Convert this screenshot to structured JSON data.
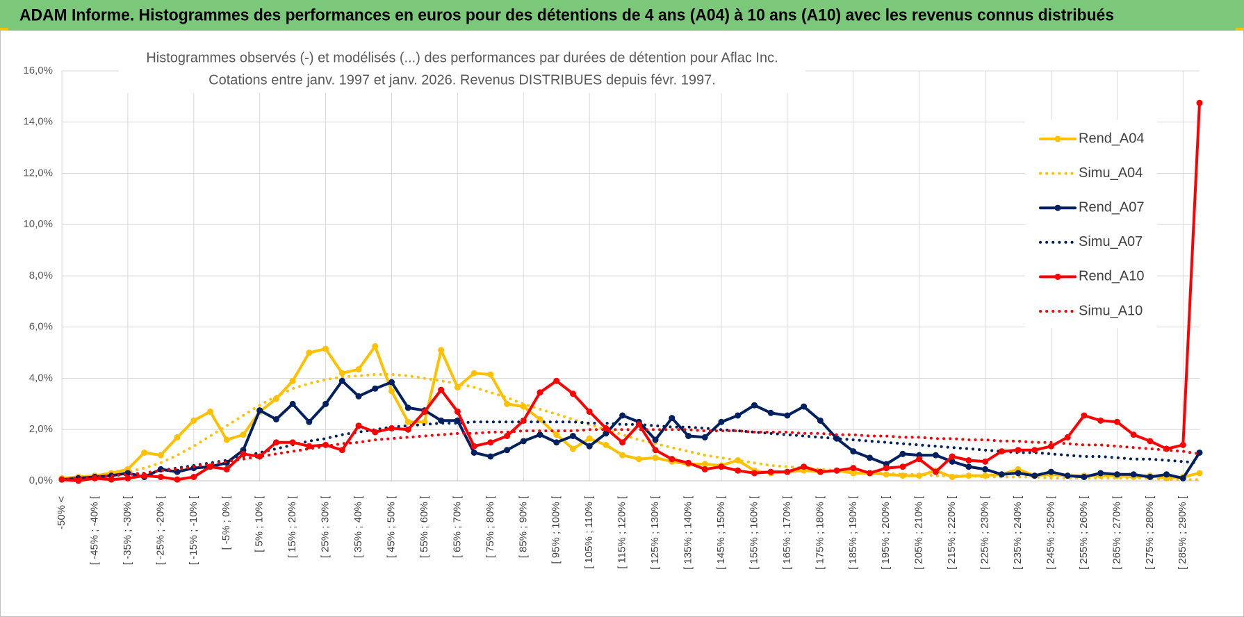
{
  "header": {
    "title": "ADAM Informe. Histogrammes des performances en euros pour des détentions de 4 ans (A04) à 10 ans (A10) avec les revenus connus distribués"
  },
  "chart_data": {
    "type": "line",
    "title": "Histogrammes observés (-) et modélisés (...) des performances par durées de détention pour Aflac Inc.",
    "subtitle": "Cotations entre janv. 1997 et janv. 2026. Revenus DISTRIBUES depuis févr. 1997.",
    "categories": [
      "-50% <",
      null,
      "[ -45% ; -40% [",
      null,
      "[ -35% ; -30% [",
      null,
      "[ -25% ; -20% [",
      null,
      "[ -15% ; -10% [",
      null,
      "[ -5% ; 0% [",
      null,
      "[ 5% ; 10% [",
      null,
      "[ 15% ; 20% [",
      null,
      "[ 25% ; 30% [",
      null,
      "[ 35% ; 40% [",
      null,
      "[ 45% ; 50% [",
      null,
      "[ 55% ; 60% [",
      null,
      "[ 65% ; 70% [",
      null,
      "[ 75% ; 80% [",
      null,
      "[ 85% ; 90% [",
      null,
      "[ 95% ; 100% [",
      null,
      "[ 105% ; 110% [",
      null,
      "[ 115% ; 120% [",
      null,
      "[ 125% ; 130% [",
      null,
      "[ 135% ; 140% [",
      null,
      "[ 145% ; 150% [",
      null,
      "[ 155% ; 160% [",
      null,
      "[ 165% ; 170% [",
      null,
      "[ 175% ; 180% [",
      null,
      "[ 185% ; 190% [",
      null,
      "[ 195% ; 200% [",
      null,
      "[ 205% ; 210% [",
      null,
      "[ 215% ; 220% [",
      null,
      "[ 225% ; 230% [",
      null,
      "[ 235% ; 240% [",
      null,
      "[ 245% ; 250% [",
      null,
      "[ 255% ; 260% [",
      null,
      "[ 265% ; 270% [",
      null,
      "[ 275% ; 280% [",
      null,
      "[ 285% ; 290% [",
      null
    ],
    "series": [
      {
        "name": "Rend_A04",
        "color": "#FFC000",
        "line_style": "solid",
        "values": [
          0.1,
          0.15,
          0.2,
          0.3,
          0.45,
          1.1,
          1.0,
          1.7,
          2.35,
          2.7,
          1.6,
          1.8,
          2.7,
          3.2,
          3.9,
          5.0,
          5.15,
          4.2,
          4.35,
          5.25,
          3.5,
          2.3,
          2.3,
          5.1,
          3.65,
          4.2,
          4.15,
          3.0,
          2.9,
          2.4,
          1.8,
          1.25,
          1.65,
          1.4,
          1.0,
          0.85,
          0.9,
          0.75,
          0.65,
          0.65,
          0.6,
          0.8,
          0.4,
          0.3,
          0.35,
          0.4,
          0.35,
          0.4,
          0.3,
          0.3,
          0.25,
          0.2,
          0.2,
          0.4,
          0.15,
          0.2,
          0.2,
          0.25,
          0.45,
          0.2,
          0.25,
          0.2,
          0.2,
          0.2,
          0.2,
          0.15,
          0.2,
          0.1,
          0.15,
          0.3
        ]
      },
      {
        "name": "Simu_A04",
        "color": "#FFC000",
        "line_style": "dotted",
        "values": [
          0.05,
          0.1,
          0.15,
          0.25,
          0.35,
          0.5,
          0.7,
          1.0,
          1.35,
          1.75,
          2.15,
          2.55,
          2.95,
          3.3,
          3.6,
          3.8,
          3.95,
          4.05,
          4.1,
          4.15,
          4.15,
          4.1,
          4.0,
          3.9,
          3.8,
          3.65,
          3.45,
          3.25,
          3.0,
          2.8,
          2.6,
          2.4,
          2.2,
          2.0,
          1.8,
          1.6,
          1.45,
          1.3,
          1.15,
          1.0,
          0.9,
          0.8,
          0.7,
          0.6,
          0.55,
          0.5,
          0.45,
          0.4,
          0.35,
          0.3,
          0.3,
          0.25,
          0.25,
          0.2,
          0.2,
          0.2,
          0.15,
          0.15,
          0.15,
          0.15,
          0.1,
          0.1,
          0.1,
          0.1,
          0.1,
          0.1,
          0.1,
          0.05,
          0.05,
          0.05
        ]
      },
      {
        "name": "Rend_A07",
        "color": "#002060",
        "line_style": "solid",
        "values": [
          0.05,
          0.1,
          0.15,
          0.2,
          0.3,
          0.15,
          0.45,
          0.35,
          0.5,
          0.55,
          0.7,
          1.2,
          2.75,
          2.4,
          3.0,
          2.3,
          3.0,
          3.9,
          3.3,
          3.6,
          3.85,
          2.85,
          2.75,
          2.35,
          2.35,
          1.1,
          0.95,
          1.2,
          1.55,
          1.8,
          1.5,
          1.75,
          1.35,
          1.85,
          2.55,
          2.3,
          1.6,
          2.45,
          1.75,
          1.7,
          2.3,
          2.55,
          2.95,
          2.65,
          2.55,
          2.9,
          2.35,
          1.65,
          1.15,
          0.9,
          0.65,
          1.05,
          1.0,
          1.0,
          0.75,
          0.55,
          0.45,
          0.25,
          0.3,
          0.2,
          0.35,
          0.2,
          0.15,
          0.3,
          0.25,
          0.25,
          0.15,
          0.25,
          0.1,
          1.1
        ]
      },
      {
        "name": "Simu_A07",
        "color": "#002060",
        "line_style": "dotted",
        "values": [
          0.05,
          0.1,
          0.15,
          0.2,
          0.25,
          0.3,
          0.4,
          0.5,
          0.6,
          0.7,
          0.8,
          0.95,
          1.1,
          1.25,
          1.4,
          1.55,
          1.65,
          1.8,
          1.9,
          2.0,
          2.1,
          2.15,
          2.2,
          2.25,
          2.25,
          2.3,
          2.3,
          2.3,
          2.3,
          2.3,
          2.3,
          2.3,
          2.25,
          2.25,
          2.2,
          2.2,
          2.15,
          2.1,
          2.1,
          2.05,
          2.0,
          1.95,
          1.9,
          1.85,
          1.8,
          1.75,
          1.7,
          1.65,
          1.6,
          1.55,
          1.5,
          1.45,
          1.4,
          1.35,
          1.3,
          1.25,
          1.2,
          1.15,
          1.1,
          1.1,
          1.05,
          1.0,
          0.95,
          0.95,
          0.9,
          0.85,
          0.85,
          0.8,
          0.75,
          0.7
        ]
      },
      {
        "name": "Rend_A10",
        "color": "#FF0000",
        "line_style": "solid",
        "values": [
          0.05,
          0,
          0.1,
          0.05,
          0.1,
          0.2,
          0.15,
          0.05,
          0.15,
          0.55,
          0.45,
          1.05,
          0.95,
          1.5,
          1.5,
          1.35,
          1.4,
          1.2,
          2.15,
          1.9,
          2.05,
          2.0,
          2.7,
          3.55,
          2.7,
          1.35,
          1.5,
          1.75,
          2.35,
          3.45,
          3.9,
          3.4,
          2.7,
          2.05,
          1.5,
          2.2,
          1.2,
          0.85,
          0.7,
          0.45,
          0.55,
          0.4,
          0.3,
          0.35,
          0.35,
          0.55,
          0.35,
          0.4,
          0.5,
          0.3,
          0.5,
          0.55,
          0.85,
          0.35,
          0.95,
          0.8,
          0.75,
          1.15,
          1.2,
          1.2,
          1.35,
          1.7,
          2.55,
          2.35,
          2.3,
          1.8,
          1.55,
          1.25,
          1.4,
          14.75
        ]
      },
      {
        "name": "Simu_A10",
        "color": "#FF0000",
        "line_style": "dotted",
        "values": [
          0.05,
          0.1,
          0.15,
          0.2,
          0.25,
          0.3,
          0.4,
          0.45,
          0.55,
          0.65,
          0.75,
          0.85,
          0.95,
          1.05,
          1.15,
          1.25,
          1.35,
          1.45,
          1.5,
          1.6,
          1.65,
          1.7,
          1.75,
          1.8,
          1.85,
          1.85,
          1.9,
          1.9,
          1.95,
          1.95,
          1.95,
          1.95,
          2.0,
          2.0,
          2.0,
          2.0,
          2.0,
          2.0,
          2.0,
          1.95,
          1.95,
          1.95,
          1.9,
          1.9,
          1.9,
          1.85,
          1.85,
          1.8,
          1.8,
          1.75,
          1.75,
          1.7,
          1.7,
          1.65,
          1.65,
          1.6,
          1.6,
          1.55,
          1.55,
          1.5,
          1.5,
          1.45,
          1.4,
          1.4,
          1.35,
          1.3,
          1.25,
          1.2,
          1.15,
          1.05
        ]
      }
    ],
    "ylim": [
      0,
      16
    ],
    "yticks": [
      {
        "value": 0,
        "label": "0,0%"
      },
      {
        "value": 2,
        "label": "2,0%"
      },
      {
        "value": 4,
        "label": "4,0%"
      },
      {
        "value": 6,
        "label": "6,0%"
      },
      {
        "value": 8,
        "label": "8,0%"
      },
      {
        "value": 10,
        "label": "10,0%"
      },
      {
        "value": 12,
        "label": "12,0%"
      },
      {
        "value": 14,
        "label": "14,0%"
      },
      {
        "value": 16,
        "label": "16,0%"
      }
    ],
    "grid": true,
    "legend": "right"
  }
}
